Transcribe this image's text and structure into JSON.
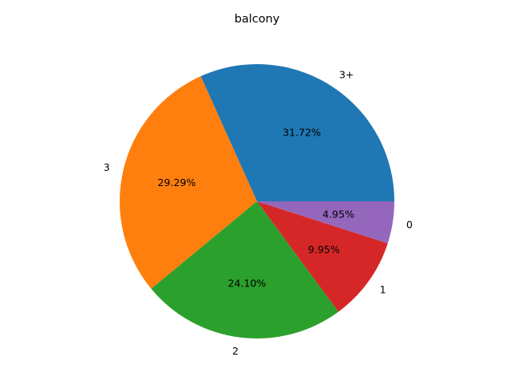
{
  "chart_data": {
    "type": "pie",
    "title": "balcony",
    "slices": [
      {
        "label": "3+",
        "value": 31.72,
        "pct_label": "31.72%",
        "color": "#1f77b4"
      },
      {
        "label": "3",
        "value": 29.29,
        "pct_label": "29.29%",
        "color": "#ff7f0e"
      },
      {
        "label": "2",
        "value": 24.1,
        "pct_label": "24.10%",
        "color": "#2ca02c"
      },
      {
        "label": "1",
        "value": 9.95,
        "pct_label": "9.95%",
        "color": "#d62728"
      },
      {
        "label": "0",
        "value": 4.95,
        "pct_label": "4.95%",
        "color": "#9467bd"
      }
    ],
    "start_angle": "3 o'clock",
    "direction": "counterclockwise"
  }
}
